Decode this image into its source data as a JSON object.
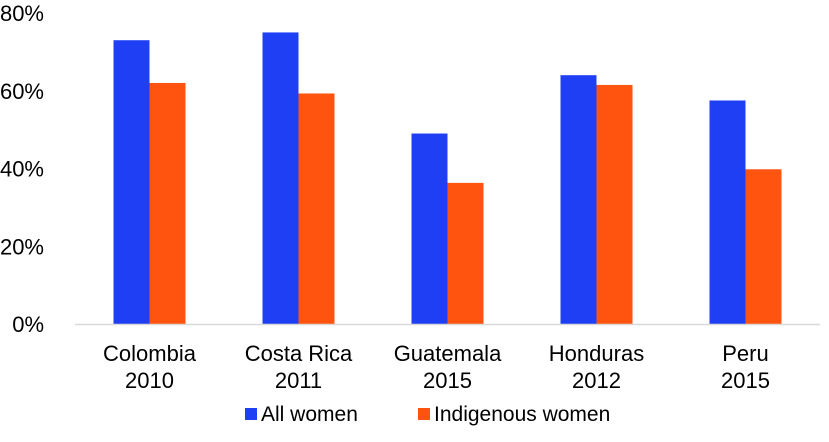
{
  "chart_data": {
    "type": "bar",
    "title": "",
    "xlabel": "",
    "ylabel": "",
    "categories": [
      [
        "Colombia",
        "2010"
      ],
      [
        "Costa Rica",
        "2011"
      ],
      [
        "Guatemala",
        "2015"
      ],
      [
        "Honduras",
        "2012"
      ],
      [
        "Peru",
        "2015"
      ]
    ],
    "series": [
      {
        "name": "All women",
        "color": "#1F3FF5",
        "values": [
          73,
          75,
          49,
          64,
          57.5
        ]
      },
      {
        "name": "Indigenous women",
        "color": "#FF5410",
        "values": [
          62,
          59.3,
          36.3,
          61.5,
          39.8
        ]
      }
    ],
    "ylim": [
      0,
      80
    ],
    "yticks": [
      0,
      20,
      40,
      60,
      80
    ],
    "ytick_labels": [
      "0%",
      "20%",
      "40%",
      "60%",
      "80%"
    ],
    "grid": false,
    "legend_position": "bottom"
  }
}
